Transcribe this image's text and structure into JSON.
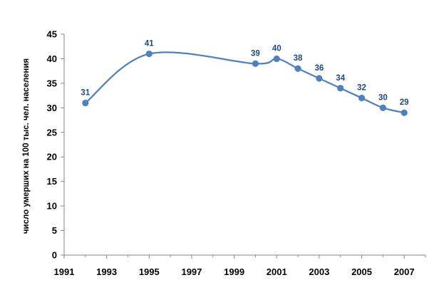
{
  "chart_data": {
    "type": "line",
    "title": "",
    "xlabel": "",
    "ylabel": "число умерших на 100 тыс. чел. населения",
    "xlim": [
      1991,
      2008
    ],
    "ylim": [
      0,
      45
    ],
    "xticks": [
      1991,
      1993,
      1995,
      1997,
      1999,
      2001,
      2003,
      2005,
      2007
    ],
    "yticks": [
      0,
      5,
      10,
      15,
      20,
      25,
      30,
      35,
      40,
      45
    ],
    "grid": false,
    "legend": "none",
    "series": [
      {
        "color": "#4F81BD",
        "label_color": "#1F497D",
        "x": [
          1992,
          1995,
          2000,
          2001,
          2002,
          2003,
          2004,
          2005,
          2006,
          2007
        ],
        "y": [
          31,
          41,
          39,
          40,
          38,
          36,
          34,
          32,
          30,
          29
        ],
        "labels": [
          "31",
          "41",
          "39",
          "40",
          "38",
          "36",
          "34",
          "32",
          "30",
          "29"
        ]
      }
    ]
  }
}
